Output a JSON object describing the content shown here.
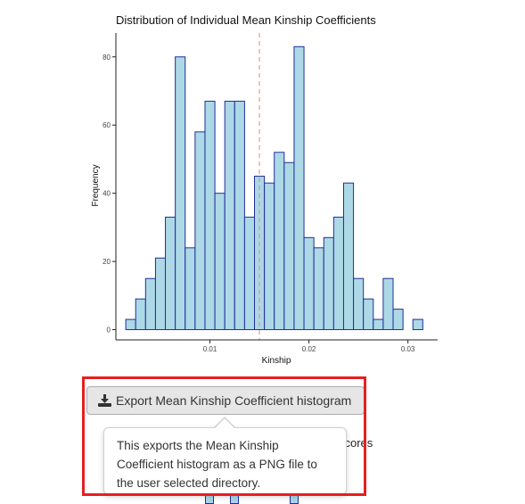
{
  "chart_data": {
    "type": "bar",
    "title": "Distribution of Individual Mean Kinship Coefficients",
    "xlabel": "Kinship",
    "ylabel": "Frequency",
    "x_ticks": [
      0.01,
      0.02,
      0.03
    ],
    "x_tick_labels": [
      "0.01",
      "0.02",
      "0.03"
    ],
    "y_ticks": [
      0,
      20,
      40,
      60,
      80
    ],
    "y_tick_labels": [
      "0",
      "20",
      "40",
      "60",
      "80"
    ],
    "xlim": [
      0.0005,
      0.033
    ],
    "ylim": [
      -3,
      87
    ],
    "bin_width": 0.001,
    "bin_centers": [
      0.002,
      0.003,
      0.004,
      0.005,
      0.006,
      0.007,
      0.008,
      0.009,
      0.01,
      0.011,
      0.012,
      0.013,
      0.014,
      0.015,
      0.016,
      0.017,
      0.018,
      0.019,
      0.02,
      0.021,
      0.022,
      0.023,
      0.024,
      0.025,
      0.026,
      0.027,
      0.028,
      0.029,
      0.03,
      0.031,
      0.032
    ],
    "values": [
      3,
      9,
      15,
      21,
      33,
      80,
      24,
      58,
      67,
      40,
      67,
      67,
      33,
      45,
      43,
      52,
      49,
      83,
      27,
      24,
      27,
      33,
      43,
      15,
      9,
      3,
      15,
      6,
      0,
      3,
      0
    ],
    "mean_line_x": 0.015,
    "bar_fill": "#add8e6",
    "bar_stroke": "#1f2f99",
    "mean_line_color": "#f08080",
    "grid": false
  },
  "export_button": {
    "label": "Export Mean Kinship Coefficient histogram",
    "icon": "download-icon"
  },
  "background_text": "scores",
  "tooltip": {
    "text": "This exports the Mean Kinship Coefficient histogram as a PNG file to the user selected directory."
  },
  "highlight_color": "#e52020"
}
